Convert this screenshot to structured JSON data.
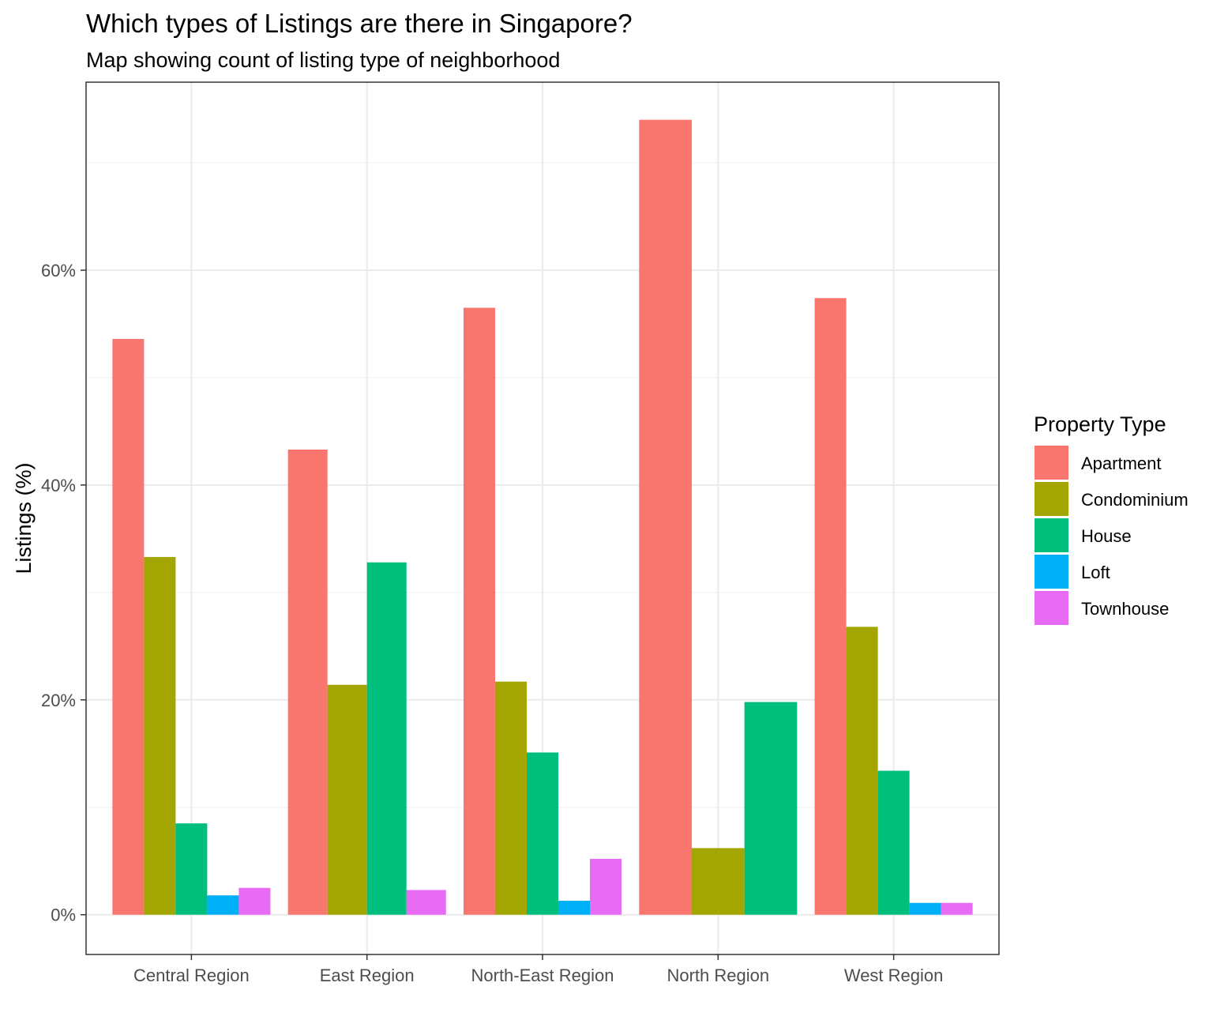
{
  "chart_data": {
    "type": "bar",
    "title": "Which types of Listings are there in Singapore?",
    "subtitle": "Map showing count of listing type of neighborhood",
    "xlabel": "",
    "ylabel": "Listings (%)",
    "ylim": [
      -3.7,
      77.5
    ],
    "yticks": [
      0,
      20,
      40,
      60
    ],
    "ytick_labels": [
      "0%",
      "20%",
      "40%",
      "60%"
    ],
    "grid": true,
    "legend": {
      "title": "Property Type",
      "position": "right"
    },
    "categories": [
      "Central Region",
      "East Region",
      "North-East Region",
      "North Region",
      "West Region"
    ],
    "series": [
      {
        "name": "Apartment",
        "color": "#F8766D",
        "values": [
          53.6,
          43.3,
          56.5,
          74.0,
          57.4
        ]
      },
      {
        "name": "Condominium",
        "color": "#A3A500",
        "values": [
          33.3,
          21.4,
          21.7,
          6.2,
          26.8
        ]
      },
      {
        "name": "House",
        "color": "#00BF7D",
        "values": [
          8.5,
          32.8,
          15.1,
          19.8,
          13.4
        ]
      },
      {
        "name": "Loft",
        "color": "#00B0F6",
        "values": [
          1.8,
          null,
          1.3,
          null,
          1.1
        ]
      },
      {
        "name": "Townhouse",
        "color": "#E76BF3",
        "values": [
          2.5,
          2.3,
          5.2,
          null,
          1.1
        ]
      }
    ]
  }
}
